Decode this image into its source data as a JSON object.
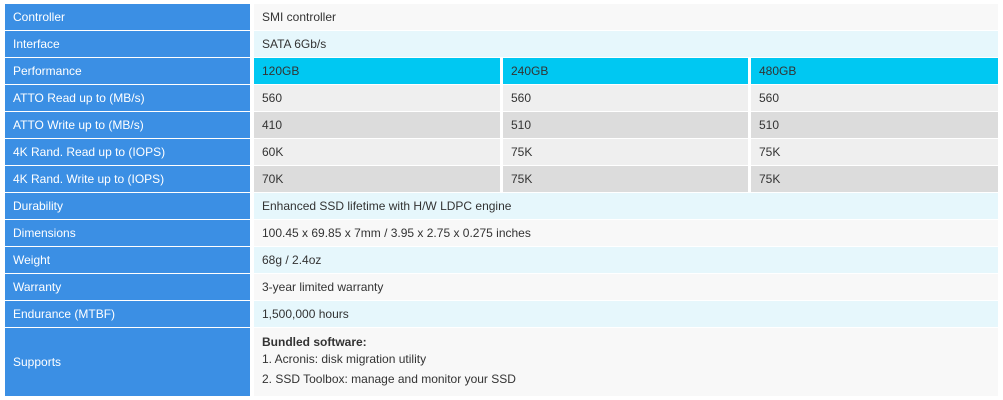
{
  "table": {
    "rows": [
      {
        "label": "Controller",
        "cells": [
          "SMI controller"
        ]
      },
      {
        "label": "Interface",
        "cells": [
          "SATA 6Gb/s"
        ]
      },
      {
        "label": "Performance",
        "cells": [
          "120GB",
          "240GB",
          "480GB"
        ]
      },
      {
        "label": "ATTO Read up to (MB/s)",
        "cells": [
          "560",
          "560",
          "560"
        ]
      },
      {
        "label": "ATTO Write up to (MB/s)",
        "cells": [
          "410",
          "510",
          "510"
        ]
      },
      {
        "label": "4K Rand. Read up to (IOPS)",
        "cells": [
          "60K",
          "75K",
          "75K"
        ]
      },
      {
        "label": "4K Rand. Write up to (IOPS)",
        "cells": [
          "70K",
          "75K",
          "75K"
        ]
      },
      {
        "label": "Durability",
        "cells": [
          "Enhanced SSD lifetime with H/W LDPC engine"
        ]
      },
      {
        "label": "Dimensions",
        "cells": [
          "100.45 x 69.85 x 7mm / 3.95 x 2.75 x 0.275 inches"
        ]
      },
      {
        "label": "Weight",
        "cells": [
          "68g / 2.4oz"
        ]
      },
      {
        "label": "Warranty",
        "cells": [
          "3-year limited warranty"
        ]
      },
      {
        "label": "Endurance (MTBF)",
        "cells": [
          "1,500,000 hours"
        ]
      },
      {
        "label": "Supports",
        "heading": "Bundled software:",
        "cells": [
          "1. Acronis: disk migration utility",
          "2. SSD Toolbox: manage and monitor your SSD"
        ]
      }
    ]
  }
}
